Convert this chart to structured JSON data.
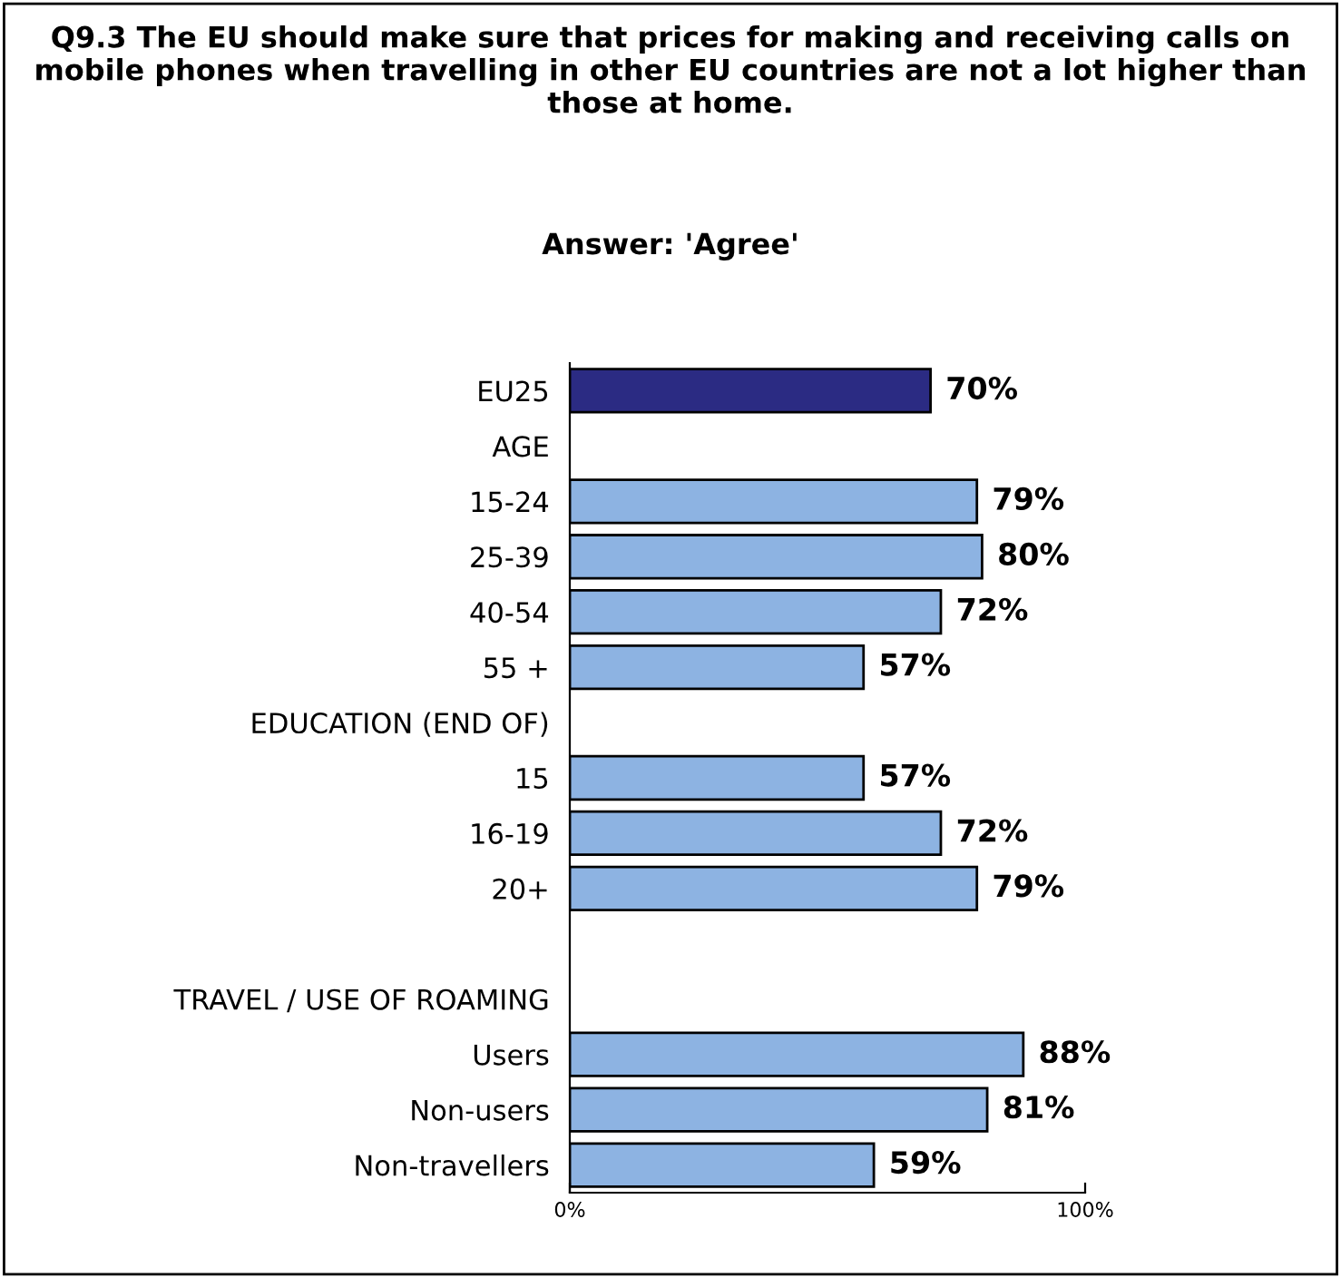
{
  "chart_data": {
    "type": "bar",
    "orientation": "horizontal",
    "title": "Q9.3 The EU should make sure that prices for making and receiving calls on mobile phones when travelling in other EU countries are not a lot higher than those at home.",
    "subtitle": "Answer: 'Agree'",
    "categories": [
      "EU25",
      "AGE",
      "15-24",
      "25-39",
      "40-54",
      "55 +",
      "EDUCATION (END OF)",
      "15",
      "16-19",
      "20+",
      null,
      "TRAVEL / USE OF ROAMING",
      "Users",
      "Non-users",
      "Non-travellers"
    ],
    "values": [
      70,
      null,
      79,
      80,
      72,
      57,
      null,
      57,
      72,
      79,
      null,
      null,
      88,
      81,
      59
    ],
    "colors": [
      "#2b2b83",
      null,
      "#8db3e2",
      "#8db3e2",
      "#8db3e2",
      "#8db3e2",
      null,
      "#8db3e2",
      "#8db3e2",
      "#8db3e2",
      null,
      null,
      "#8db3e2",
      "#8db3e2",
      "#8db3e2"
    ],
    "value_labels": [
      "70%",
      null,
      "79%",
      "80%",
      "72%",
      "57%",
      null,
      "57%",
      "72%",
      "79%",
      null,
      null,
      "88%",
      "81%",
      "59%"
    ],
    "xlim": [
      0,
      100
    ],
    "xticks": [
      {
        "value": 0,
        "label": "0%"
      },
      {
        "value": 100,
        "label": "100%"
      }
    ],
    "grid": false,
    "legend": false
  }
}
